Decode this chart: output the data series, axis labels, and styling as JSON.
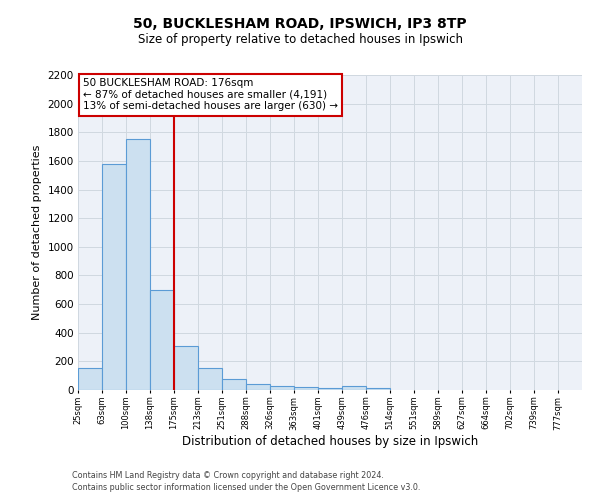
{
  "title_line1": "50, BUCKLESHAM ROAD, IPSWICH, IP3 8TP",
  "title_line2": "Size of property relative to detached houses in Ipswich",
  "xlabel": "Distribution of detached houses by size in Ipswich",
  "ylabel": "Number of detached properties",
  "footer_line1": "Contains HM Land Registry data © Crown copyright and database right 2024.",
  "footer_line2": "Contains public sector information licensed under the Open Government Licence v3.0.",
  "bin_edges": [
    25,
    63,
    100,
    138,
    175,
    213,
    251,
    288,
    326,
    363,
    401,
    439,
    476,
    514,
    551,
    589,
    627,
    664,
    702,
    739,
    777
  ],
  "bar_heights": [
    155,
    1580,
    1750,
    700,
    310,
    155,
    80,
    45,
    25,
    20,
    15,
    25,
    15,
    0,
    0,
    0,
    0,
    0,
    0,
    0
  ],
  "bar_color": "#cce0f0",
  "bar_edge_color": "#5b9bd5",
  "bar_edge_width": 0.8,
  "red_line_x": 176,
  "red_line_color": "#cc0000",
  "ylim": [
    0,
    2200
  ],
  "yticks": [
    0,
    200,
    400,
    600,
    800,
    1000,
    1200,
    1400,
    1600,
    1800,
    2000,
    2200
  ],
  "annotation_title": "50 BUCKLESHAM ROAD: 176sqm",
  "annotation_line2": "← 87% of detached houses are smaller (4,191)",
  "annotation_line3": "13% of semi-detached houses are larger (630) →",
  "annotation_box_edge_color": "#cc0000",
  "grid_color": "#d0d8e0",
  "bg_color": "#edf1f8"
}
